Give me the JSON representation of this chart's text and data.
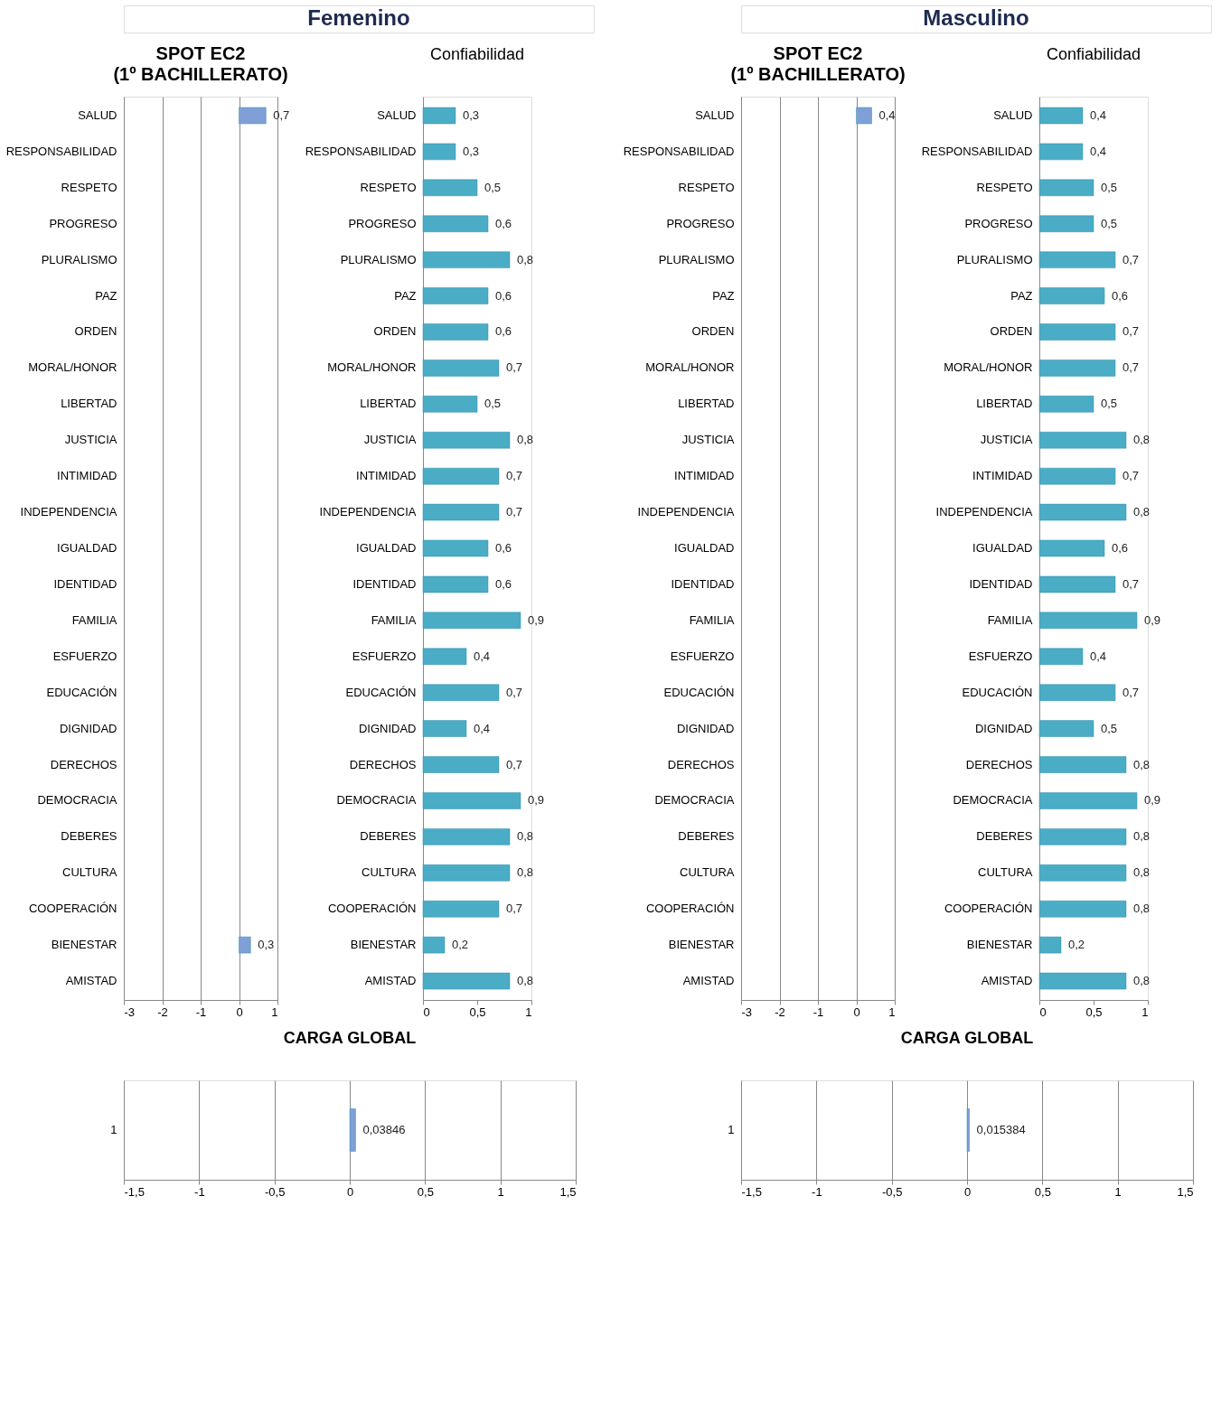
{
  "chart_data": [
    {
      "type": "bar",
      "orientation": "horizontal",
      "title": "SPOT EC2",
      "subtitle": "(1º BACHILLERATO)",
      "annotations": [
        "Femenino"
      ],
      "color": "#7f9fd6",
      "grid": "x",
      "categories": [
        "SALUD",
        "RESPONSABILIDAD",
        "RESPETO",
        "PROGRESO",
        "PLURALISMO",
        "PAZ",
        "ORDEN",
        "MORAL/HONOR",
        "LIBERTAD",
        "JUSTICIA",
        "INTIMIDAD",
        "INDEPENDENCIA",
        "IGUALDAD",
        "IDENTIDAD",
        "FAMILIA",
        "ESFUERZO",
        "EDUCACIÓN",
        "DIGNIDAD",
        "DERECHOS",
        "DEMOCRACIA",
        "DEBERES",
        "CULTURA",
        "COOPERACIÓN",
        "BIENESTAR",
        "AMISTAD"
      ],
      "values": [
        0.7,
        null,
        null,
        null,
        null,
        null,
        null,
        null,
        null,
        null,
        null,
        null,
        null,
        null,
        null,
        null,
        null,
        null,
        null,
        null,
        null,
        null,
        null,
        0.3,
        null
      ],
      "value_labels": [
        "0,7",
        null,
        null,
        null,
        null,
        null,
        null,
        null,
        null,
        null,
        null,
        null,
        null,
        null,
        null,
        null,
        null,
        null,
        null,
        null,
        null,
        null,
        null,
        "0,3",
        null
      ],
      "xlim": [
        -3,
        1
      ],
      "xticks": [
        -3,
        -2,
        -1,
        0,
        1
      ]
    },
    {
      "type": "bar",
      "orientation": "horizontal",
      "title": "Confiabilidad",
      "color": "#4bacc6",
      "categories": [
        "SALUD",
        "RESPONSABILIDAD",
        "RESPETO",
        "PROGRESO",
        "PLURALISMO",
        "PAZ",
        "ORDEN",
        "MORAL/HONOR",
        "LIBERTAD",
        "JUSTICIA",
        "INTIMIDAD",
        "INDEPENDENCIA",
        "IGUALDAD",
        "IDENTIDAD",
        "FAMILIA",
        "ESFUERZO",
        "EDUCACIÓN",
        "DIGNIDAD",
        "DERECHOS",
        "DEMOCRACIA",
        "DEBERES",
        "CULTURA",
        "COOPERACIÓN",
        "BIENESTAR",
        "AMISTAD"
      ],
      "values": [
        0.3,
        0.3,
        0.5,
        0.6,
        0.8,
        0.6,
        0.6,
        0.7,
        0.5,
        0.8,
        0.7,
        0.7,
        0.6,
        0.6,
        0.9,
        0.4,
        0.7,
        0.4,
        0.7,
        0.9,
        0.8,
        0.8,
        0.7,
        0.2,
        0.8
      ],
      "value_labels": [
        "0,3",
        "0,3",
        "0,5",
        "0,6",
        "0,8",
        "0,6",
        "0,6",
        "0,7",
        "0,5",
        "0,8",
        "0,7",
        "0,7",
        "0,6",
        "0,6",
        "0,9",
        "0,4",
        "0,7",
        "0,4",
        "0,7",
        "0,9",
        "0,8",
        "0,8",
        "0,7",
        "0,2",
        "0,8"
      ],
      "xlim": [
        0,
        1
      ],
      "xticks": [
        0,
        {
          "value": 0.5,
          "label": "0,5"
        },
        1
      ]
    },
    {
      "type": "bar",
      "orientation": "horizontal",
      "title": "CARGA GLOBAL",
      "color": "#7f9fd6",
      "grid": "x",
      "categories": [
        "1"
      ],
      "values": [
        0.03846
      ],
      "value_labels": [
        "0,03846"
      ],
      "xlim": [
        -1.5,
        1.5
      ],
      "xticks": [
        {
          "value": -1.5,
          "label": "-1,5"
        },
        -1,
        {
          "value": -0.5,
          "label": "-0,5"
        },
        0,
        {
          "value": 0.5,
          "label": "0,5"
        },
        1,
        {
          "value": 1.5,
          "label": "1,5"
        }
      ]
    },
    {
      "type": "bar",
      "orientation": "horizontal",
      "title": "SPOT EC2",
      "subtitle": "(1º BACHILLERATO)",
      "annotations": [
        "Masculino"
      ],
      "color": "#7f9fd6",
      "grid": "x",
      "categories": [
        "SALUD",
        "RESPONSABILIDAD",
        "RESPETO",
        "PROGRESO",
        "PLURALISMO",
        "PAZ",
        "ORDEN",
        "MORAL/HONOR",
        "LIBERTAD",
        "JUSTICIA",
        "INTIMIDAD",
        "INDEPENDENCIA",
        "IGUALDAD",
        "IDENTIDAD",
        "FAMILIA",
        "ESFUERZO",
        "EDUCACIÓN",
        "DIGNIDAD",
        "DERECHOS",
        "DEMOCRACIA",
        "DEBERES",
        "CULTURA",
        "COOPERACIÓN",
        "BIENESTAR",
        "AMISTAD"
      ],
      "values": [
        0.4,
        null,
        null,
        null,
        null,
        null,
        null,
        null,
        null,
        null,
        null,
        null,
        null,
        null,
        null,
        null,
        null,
        null,
        null,
        null,
        null,
        null,
        null,
        null,
        null
      ],
      "value_labels": [
        "0,4",
        null,
        null,
        null,
        null,
        null,
        null,
        null,
        null,
        null,
        null,
        null,
        null,
        null,
        null,
        null,
        null,
        null,
        null,
        null,
        null,
        null,
        null,
        null,
        null
      ],
      "xlim": [
        -3,
        1
      ],
      "xticks": [
        -3,
        -2,
        -1,
        0,
        1
      ]
    },
    {
      "type": "bar",
      "orientation": "horizontal",
      "title": "Confiabilidad",
      "color": "#4bacc6",
      "categories": [
        "SALUD",
        "RESPONSABILIDAD",
        "RESPETO",
        "PROGRESO",
        "PLURALISMO",
        "PAZ",
        "ORDEN",
        "MORAL/HONOR",
        "LIBERTAD",
        "JUSTICIA",
        "INTIMIDAD",
        "INDEPENDENCIA",
        "IGUALDAD",
        "IDENTIDAD",
        "FAMILIA",
        "ESFUERZO",
        "EDUCACIÓN",
        "DIGNIDAD",
        "DERECHOS",
        "DEMOCRACIA",
        "DEBERES",
        "CULTURA",
        "COOPERACIÓN",
        "BIENESTAR",
        "AMISTAD"
      ],
      "values": [
        0.4,
        0.4,
        0.5,
        0.5,
        0.7,
        0.6,
        0.7,
        0.7,
        0.5,
        0.8,
        0.7,
        0.8,
        0.6,
        0.7,
        0.9,
        0.4,
        0.7,
        0.5,
        0.8,
        0.9,
        0.8,
        0.8,
        0.8,
        0.2,
        0.8
      ],
      "value_labels": [
        "0,4",
        "0,4",
        "0,5",
        "0,5",
        "0,7",
        "0,6",
        "0,7",
        "0,7",
        "0,5",
        "0,8",
        "0,7",
        "0,8",
        "0,6",
        "0,7",
        "0,9",
        "0,4",
        "0,7",
        "0,5",
        "0,8",
        "0,9",
        "0,8",
        "0,8",
        "0,8",
        "0,2",
        "0,8"
      ],
      "xlim": [
        0,
        1
      ],
      "xticks": [
        0,
        {
          "value": 0.5,
          "label": "0,5"
        },
        1
      ]
    },
    {
      "type": "bar",
      "orientation": "horizontal",
      "title": "CARGA GLOBAL",
      "color": "#7f9fd6",
      "grid": "x",
      "categories": [
        "1"
      ],
      "values": [
        0.015384
      ],
      "value_labels": [
        "0,015384"
      ],
      "xlim": [
        -1.5,
        1.5
      ],
      "xticks": [
        {
          "value": -1.5,
          "label": "-1,5"
        },
        -1,
        {
          "value": -0.5,
          "label": "-0,5"
        },
        0,
        {
          "value": 0.5,
          "label": "0,5"
        },
        1,
        {
          "value": 1.5,
          "label": "1,5"
        }
      ]
    }
  ]
}
